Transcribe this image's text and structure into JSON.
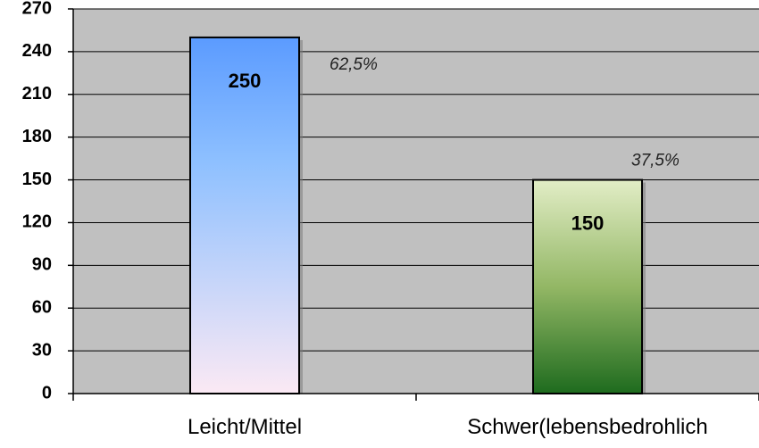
{
  "chart_data": {
    "type": "bar",
    "title": "",
    "xlabel": "",
    "ylabel": "",
    "categories": [
      "Leicht/Mittel",
      "Schwer(lebensbedrohlich"
    ],
    "values": [
      250,
      150
    ],
    "value_labels": [
      "250",
      "150"
    ],
    "percent_labels": [
      "62,5%",
      "37,5%"
    ],
    "ylim": [
      0,
      270
    ],
    "yticks": [
      0,
      30,
      60,
      90,
      120,
      150,
      180,
      210,
      240,
      270
    ],
    "ytick_labels": [
      "0",
      "30",
      "60",
      "90",
      "120",
      "150",
      "180",
      "210",
      "240",
      "270"
    ],
    "grid": true,
    "legend": "none",
    "colors": {
      "plot_background": "#c0c0c0",
      "gridline": "#000000",
      "bar1_top": "#5b9bff",
      "bar1_bottom": "#fbe9f4",
      "bar2_top": "#e2edc6",
      "bar2_bottom": "#1e6b1e"
    }
  }
}
